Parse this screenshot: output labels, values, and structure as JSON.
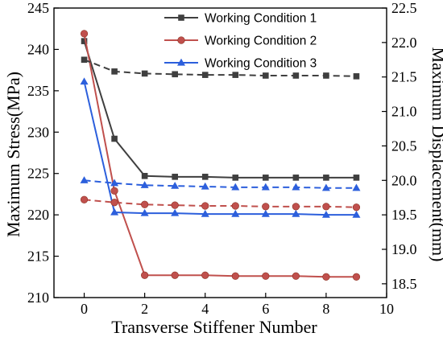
{
  "chart_data": {
    "type": "line",
    "title": "",
    "xlabel": "Transverse Stiffener Number",
    "ylabel": "Maximum Stress(MPa)",
    "ylabel_right": "Maximum Displacement(mm)",
    "xlim": [
      -1,
      10
    ],
    "ylim": [
      210,
      245
    ],
    "ylim_right": [
      18.3,
      22.5
    ],
    "x_ticks": [
      0,
      2,
      4,
      6,
      8,
      10
    ],
    "y_ticks": [
      210,
      215,
      220,
      225,
      230,
      235,
      240,
      245
    ],
    "y_ticks_right": [
      18.5,
      19.0,
      19.5,
      20.0,
      20.5,
      21.0,
      21.5,
      22.0,
      22.5
    ],
    "x": [
      0,
      1,
      2,
      3,
      4,
      5,
      6,
      7,
      8,
      9
    ],
    "grid": false,
    "legend_position": "top-right",
    "series": [
      {
        "name": "Working Condition 1",
        "color": "#3f3f3f",
        "marker": "square",
        "axis": "left",
        "values": [
          241.0,
          229.2,
          224.7,
          224.6,
          224.6,
          224.5,
          224.5,
          224.5,
          224.5,
          224.5
        ]
      },
      {
        "name": "Working Condition 2",
        "color": "#c0504d",
        "marker": "circle",
        "axis": "left",
        "values": [
          241.9,
          222.9,
          212.7,
          212.7,
          212.7,
          212.6,
          212.6,
          212.6,
          212.5,
          212.5
        ]
      },
      {
        "name": "Working Condition 3",
        "color": "#2c5fdc",
        "marker": "triangle",
        "axis": "left",
        "values": [
          236.1,
          220.3,
          220.2,
          220.2,
          220.1,
          220.1,
          220.1,
          220.1,
          220.0,
          220.0
        ]
      },
      {
        "name": "",
        "color": "#3f3f3f",
        "marker": "square",
        "axis": "right",
        "dashed": true,
        "values": [
          21.75,
          21.58,
          21.55,
          21.54,
          21.53,
          21.53,
          21.52,
          21.52,
          21.52,
          21.51
        ]
      },
      {
        "name": "",
        "color": "#c0504d",
        "marker": "circle",
        "axis": "right",
        "dashed": true,
        "values": [
          19.72,
          19.68,
          19.65,
          19.64,
          19.63,
          19.63,
          19.62,
          19.62,
          19.62,
          19.61
        ]
      },
      {
        "name": "",
        "color": "#2c5fdc",
        "marker": "triangle",
        "axis": "right",
        "dashed": true,
        "values": [
          20.0,
          19.96,
          19.93,
          19.92,
          19.91,
          19.9,
          19.9,
          19.9,
          19.89,
          19.89
        ]
      }
    ]
  }
}
